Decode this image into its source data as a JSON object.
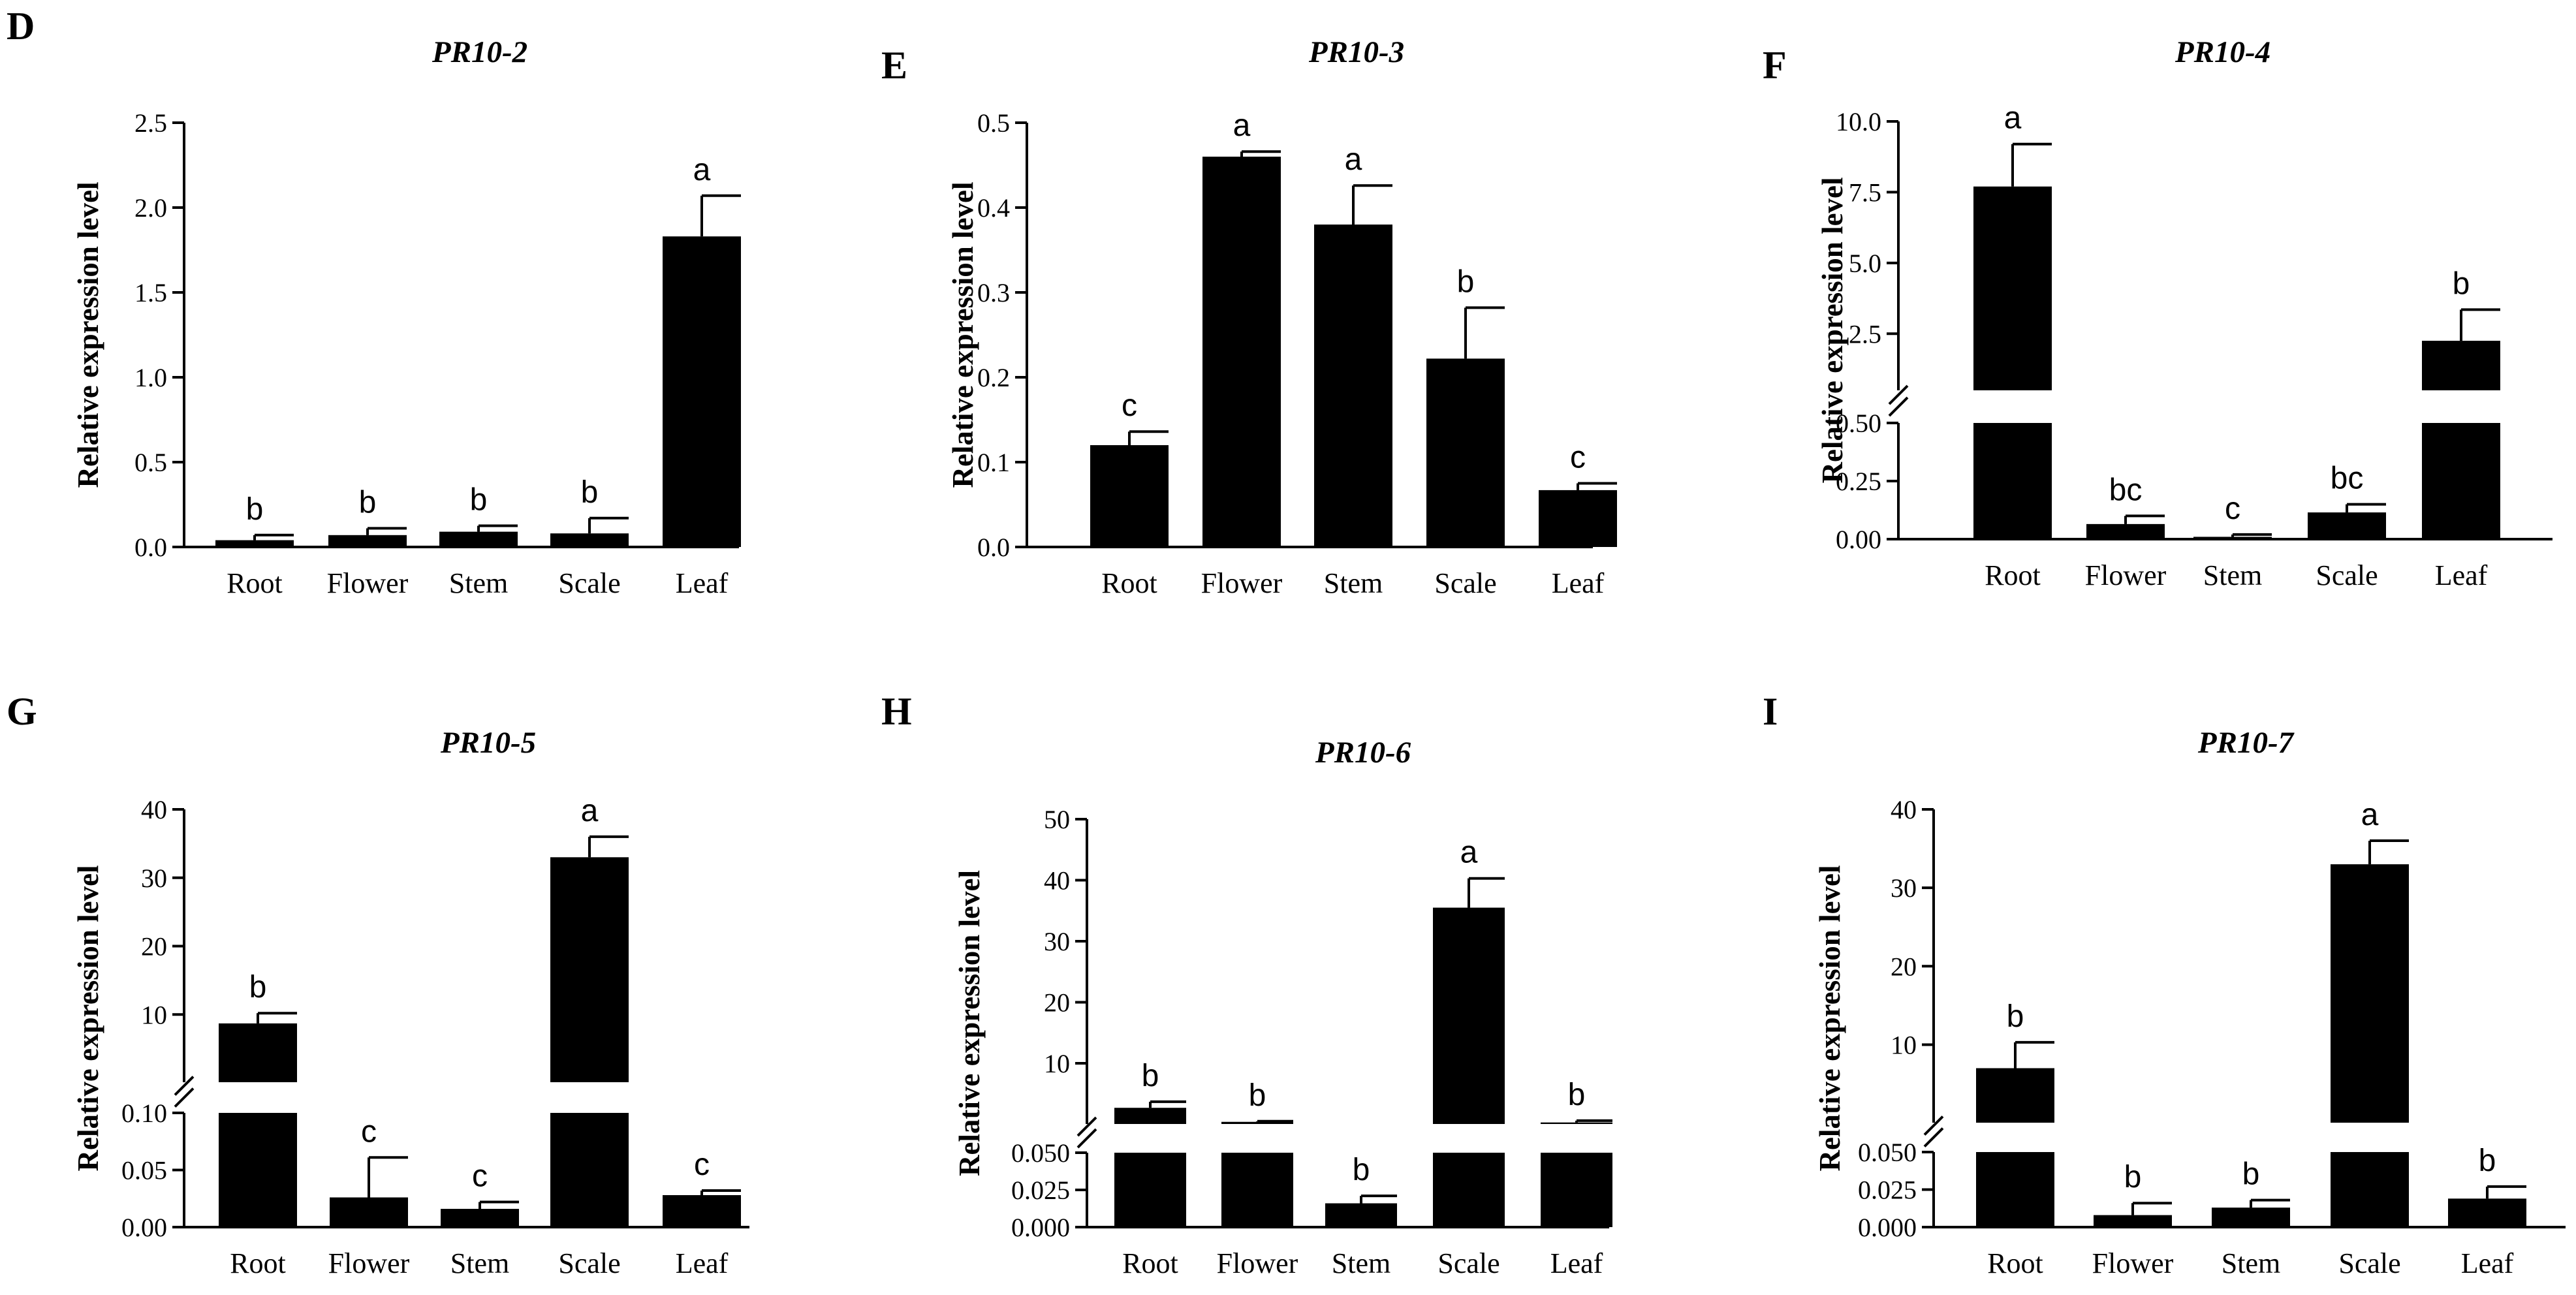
{
  "chart_data": [
    {
      "panel": "D",
      "title": "PR10-2",
      "type": "bar",
      "ylabel": "Relative expression level",
      "categories": [
        "Root",
        "Flower",
        "Stem",
        "Scale",
        "Leaf"
      ],
      "values": [
        0.04,
        0.07,
        0.09,
        0.08,
        1.83
      ],
      "errors": [
        0.03,
        0.04,
        0.035,
        0.09,
        0.24
      ],
      "significance": [
        "b",
        "b",
        "b",
        "b",
        "a"
      ],
      "ylim": [
        0,
        2.5
      ],
      "yticks": [
        0,
        0.5,
        1.0,
        1.5,
        2.0,
        2.5
      ],
      "ytick_labels": [
        "0.0",
        "0.5",
        "1.0",
        "1.5",
        "2.0",
        "2.5"
      ]
    },
    {
      "panel": "E",
      "title": "PR10-3",
      "type": "bar",
      "ylabel": "Relative expression level",
      "categories": [
        "Root",
        "Flower",
        "Stem",
        "Scale",
        "Leaf"
      ],
      "values": [
        0.12,
        0.46,
        0.38,
        0.222,
        0.067
      ],
      "errors": [
        0.016,
        0.006,
        0.046,
        0.06,
        0.008
      ],
      "significance": [
        "c",
        "a",
        "a",
        "b",
        "c"
      ],
      "ylim": [
        0,
        0.5
      ],
      "yticks": [
        0,
        0.1,
        0.2,
        0.3,
        0.4,
        0.5
      ],
      "ytick_labels": [
        "0.0",
        "0.1",
        "0.2",
        "0.3",
        "0.4",
        "0.5"
      ]
    },
    {
      "panel": "F",
      "title": "PR10-4",
      "type": "bar",
      "ylabel": "Relative expression level",
      "categories": [
        "Root",
        "Flower",
        "Stem",
        "Scale",
        "Leaf"
      ],
      "values": [
        7.7,
        0.065,
        0.01,
        0.115,
        2.25
      ],
      "errors": [
        1.5,
        0.035,
        0.01,
        0.035,
        1.1
      ],
      "significance": [
        "a",
        "bc",
        "c",
        "bc",
        "b"
      ],
      "broken_axis": {
        "lower": {
          "range": [
            0,
            0.5
          ],
          "ticks": [
            0,
            0.25,
            0.5
          ],
          "tick_labels": [
            "0.00",
            "0.25",
            "0.50"
          ]
        },
        "upper": {
          "range": [
            0.5,
            10
          ],
          "ticks": [
            2.5,
            5,
            7.5,
            10
          ],
          "tick_labels": [
            "2.5",
            "5.0",
            "7.5",
            "10.0"
          ]
        }
      }
    },
    {
      "panel": "G",
      "title": "PR10-5",
      "type": "bar",
      "ylabel": "Relative expression level",
      "categories": [
        "Root",
        "Flower",
        "Stem",
        "Scale",
        "Leaf"
      ],
      "values": [
        8.7,
        0.026,
        0.016,
        33.0,
        0.028
      ],
      "errors": [
        1.5,
        0.035,
        0.006,
        3.0,
        0.004
      ],
      "significance": [
        "b",
        "c",
        "c",
        "a",
        "c"
      ],
      "broken_axis": {
        "lower": {
          "range": [
            0,
            0.1
          ],
          "ticks": [
            0,
            0.05,
            0.1
          ],
          "tick_labels": [
            "0.00",
            "0.05",
            "0.10"
          ]
        },
        "upper": {
          "range": [
            0.1,
            40
          ],
          "ticks": [
            10,
            20,
            30,
            40
          ],
          "tick_labels": [
            "10",
            "20",
            "30",
            "40"
          ]
        }
      }
    },
    {
      "panel": "H",
      "title": "PR10-6",
      "type": "bar",
      "ylabel": "Relative expression level",
      "categories": [
        "Root",
        "Flower",
        "Stem",
        "Scale",
        "Leaf"
      ],
      "values": [
        2.7,
        0.4,
        0.016,
        35.5,
        0.3
      ],
      "errors": [
        1.0,
        0.1,
        0.005,
        4.8,
        0.3
      ],
      "significance": [
        "b",
        "b",
        "b",
        "a",
        "b"
      ],
      "broken_axis": {
        "lower": {
          "range": [
            0,
            0.05
          ],
          "ticks": [
            0,
            0.025,
            0.05
          ],
          "tick_labels": [
            "0.000",
            "0.025",
            "0.050"
          ]
        },
        "upper": {
          "range": [
            0.05,
            50
          ],
          "ticks": [
            10,
            20,
            30,
            40,
            50
          ],
          "tick_labels": [
            "10",
            "20",
            "30",
            "40",
            "50"
          ]
        }
      }
    },
    {
      "panel": "I",
      "title": "PR10-7",
      "type": "bar",
      "ylabel": "Relative expression level",
      "categories": [
        "Root",
        "Flower",
        "Stem",
        "Scale",
        "Leaf"
      ],
      "values": [
        7.0,
        0.008,
        0.013,
        33.0,
        0.019
      ],
      "errors": [
        3.3,
        0.008,
        0.005,
        3.0,
        0.008
      ],
      "significance": [
        "b",
        "b",
        "b",
        "a",
        "b"
      ],
      "broken_axis": {
        "lower": {
          "range": [
            0,
            0.05
          ],
          "ticks": [
            0,
            0.025,
            0.05
          ],
          "tick_labels": [
            "0.000",
            "0.025",
            "0.050"
          ]
        },
        "upper": {
          "range": [
            0.05,
            40
          ],
          "ticks": [
            10,
            20,
            30,
            40
          ],
          "tick_labels": [
            "10",
            "20",
            "30",
            "40"
          ]
        }
      }
    }
  ]
}
